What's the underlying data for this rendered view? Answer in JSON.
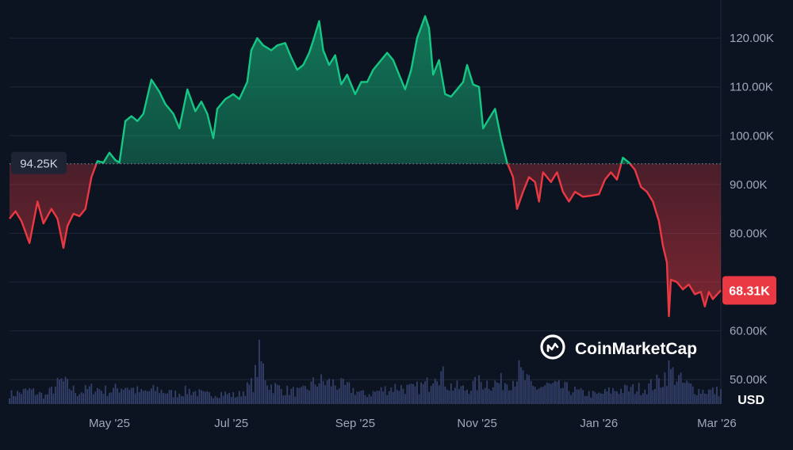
{
  "colors": {
    "background": "#0d1421",
    "grid": "#1e2636",
    "up": "#16c784",
    "down": "#ea3943",
    "axis_text": "#a1a7bb",
    "volume": "#3b4878",
    "reference_label_bg": "#1e2433",
    "reference_label_text": "#cfd6e4",
    "price_tag_text": "#ffffff",
    "watermark": "#ffffff"
  },
  "watermark": {
    "text": "CoinMarketCap",
    "icon": "coinmarketcap-logo-icon"
  },
  "chart_data": {
    "type": "line",
    "currency_label": "USD",
    "y_ticks": [
      {
        "value": 50000,
        "label": "50.00K"
      },
      {
        "value": 60000,
        "label": "60.00K"
      },
      {
        "value": 70000,
        "label": ""
      },
      {
        "value": 80000,
        "label": "80.00K"
      },
      {
        "value": 90000,
        "label": "90.00K"
      },
      {
        "value": 100000,
        "label": "100.00K"
      },
      {
        "value": 110000,
        "label": "110.00K"
      },
      {
        "value": 120000,
        "label": "120.00K"
      }
    ],
    "x_ticks": [
      {
        "date": "2025-05-01",
        "label": "May '25"
      },
      {
        "date": "2025-07-01",
        "label": "Jul '25"
      },
      {
        "date": "2025-09-01",
        "label": "Sep '25"
      },
      {
        "date": "2025-11-01",
        "label": "Nov '25"
      },
      {
        "date": "2026-01-01",
        "label": "Jan '26"
      },
      {
        "date": "2026-03-01",
        "label": "Mar '26"
      }
    ],
    "ylim": [
      45000,
      127000
    ],
    "xlim": [
      "2025-03-12",
      "2026-03-03"
    ],
    "reference": {
      "value": 94250,
      "label": "94.25K"
    },
    "current": {
      "value": 68310,
      "label": "68.31K"
    },
    "series": [
      {
        "points": [
          [
            "2025-03-12",
            83000
          ],
          [
            "2025-03-15",
            84500
          ],
          [
            "2025-03-18",
            82500
          ],
          [
            "2025-03-22",
            78000
          ],
          [
            "2025-03-26",
            86500
          ],
          [
            "2025-03-29",
            82000
          ],
          [
            "2025-04-02",
            85000
          ],
          [
            "2025-04-05",
            83000
          ],
          [
            "2025-04-08",
            77000
          ],
          [
            "2025-04-10",
            81500
          ],
          [
            "2025-04-13",
            84000
          ],
          [
            "2025-04-16",
            83500
          ],
          [
            "2025-04-19",
            85000
          ],
          [
            "2025-04-22",
            91500
          ],
          [
            "2025-04-25",
            94800
          ],
          [
            "2025-04-28",
            94500
          ],
          [
            "2025-05-01",
            96500
          ],
          [
            "2025-05-04",
            95000
          ],
          [
            "2025-05-06",
            94500
          ],
          [
            "2025-05-09",
            103000
          ],
          [
            "2025-05-12",
            104000
          ],
          [
            "2025-05-15",
            103000
          ],
          [
            "2025-05-18",
            104500
          ],
          [
            "2025-05-22",
            111500
          ],
          [
            "2025-05-26",
            109000
          ],
          [
            "2025-05-29",
            106500
          ],
          [
            "2025-06-02",
            104500
          ],
          [
            "2025-06-05",
            101500
          ],
          [
            "2025-06-09",
            109500
          ],
          [
            "2025-06-13",
            105000
          ],
          [
            "2025-06-16",
            107000
          ],
          [
            "2025-06-19",
            104500
          ],
          [
            "2025-06-22",
            99500
          ],
          [
            "2025-06-24",
            105500
          ],
          [
            "2025-06-28",
            107500
          ],
          [
            "2025-07-02",
            108500
          ],
          [
            "2025-07-05",
            107500
          ],
          [
            "2025-07-09",
            111000
          ],
          [
            "2025-07-11",
            117500
          ],
          [
            "2025-07-14",
            120000
          ],
          [
            "2025-07-17",
            118500
          ],
          [
            "2025-07-21",
            117500
          ],
          [
            "2025-07-24",
            118500
          ],
          [
            "2025-07-28",
            119000
          ],
          [
            "2025-07-31",
            116000
          ],
          [
            "2025-08-03",
            113500
          ],
          [
            "2025-08-06",
            114500
          ],
          [
            "2025-08-09",
            117000
          ],
          [
            "2025-08-11",
            119500
          ],
          [
            "2025-08-14",
            123500
          ],
          [
            "2025-08-16",
            117500
          ],
          [
            "2025-08-19",
            114500
          ],
          [
            "2025-08-22",
            116500
          ],
          [
            "2025-08-25",
            110500
          ],
          [
            "2025-08-28",
            112500
          ],
          [
            "2025-09-01",
            108500
          ],
          [
            "2025-09-04",
            111000
          ],
          [
            "2025-09-07",
            111000
          ],
          [
            "2025-09-10",
            113500
          ],
          [
            "2025-09-14",
            115500
          ],
          [
            "2025-09-17",
            117000
          ],
          [
            "2025-09-20",
            115500
          ],
          [
            "2025-09-23",
            112500
          ],
          [
            "2025-09-26",
            109500
          ],
          [
            "2025-09-29",
            113500
          ],
          [
            "2025-10-02",
            120000
          ],
          [
            "2025-10-06",
            124500
          ],
          [
            "2025-10-08",
            122000
          ],
          [
            "2025-10-10",
            112500
          ],
          [
            "2025-10-13",
            115500
          ],
          [
            "2025-10-16",
            108500
          ],
          [
            "2025-10-19",
            108000
          ],
          [
            "2025-10-22",
            109500
          ],
          [
            "2025-10-25",
            111000
          ],
          [
            "2025-10-27",
            114500
          ],
          [
            "2025-10-30",
            110500
          ],
          [
            "2025-11-02",
            110000
          ],
          [
            "2025-11-04",
            101500
          ],
          [
            "2025-11-07",
            103500
          ],
          [
            "2025-11-10",
            105500
          ],
          [
            "2025-11-13",
            99500
          ],
          [
            "2025-11-16",
            94500
          ],
          [
            "2025-11-19",
            91500
          ],
          [
            "2025-11-21",
            85000
          ],
          [
            "2025-11-24",
            88500
          ],
          [
            "2025-11-27",
            91500
          ],
          [
            "2025-11-30",
            90500
          ],
          [
            "2025-12-02",
            86500
          ],
          [
            "2025-12-04",
            92500
          ],
          [
            "2025-12-08",
            90500
          ],
          [
            "2025-12-11",
            92500
          ],
          [
            "2025-12-14",
            88500
          ],
          [
            "2025-12-17",
            86500
          ],
          [
            "2025-12-20",
            88500
          ],
          [
            "2025-12-24",
            87500
          ],
          [
            "2025-12-28",
            87700
          ],
          [
            "2026-01-01",
            88000
          ],
          [
            "2026-01-04",
            91000
          ],
          [
            "2026-01-07",
            92500
          ],
          [
            "2026-01-10",
            91000
          ],
          [
            "2026-01-13",
            95500
          ],
          [
            "2026-01-16",
            94500
          ],
          [
            "2026-01-19",
            93000
          ],
          [
            "2026-01-22",
            89500
          ],
          [
            "2026-01-25",
            88500
          ],
          [
            "2026-01-28",
            86500
          ],
          [
            "2026-01-31",
            82500
          ],
          [
            "2026-02-02",
            77500
          ],
          [
            "2026-02-04",
            74000
          ],
          [
            "2026-02-05",
            63000
          ],
          [
            "2026-02-06",
            70500
          ],
          [
            "2026-02-09",
            70000
          ],
          [
            "2026-02-12",
            68500
          ],
          [
            "2026-02-15",
            69500
          ],
          [
            "2026-02-18",
            67500
          ],
          [
            "2026-02-21",
            68000
          ],
          [
            "2026-02-23",
            65000
          ],
          [
            "2026-02-25",
            68000
          ],
          [
            "2026-02-27",
            66500
          ],
          [
            "2026-03-03",
            68310
          ]
        ]
      }
    ],
    "volume": [
      [
        "2025-03-14",
        0.22
      ],
      [
        "2025-03-22",
        0.3
      ],
      [
        "2025-03-30",
        0.18
      ],
      [
        "2025-04-07",
        0.5
      ],
      [
        "2025-04-15",
        0.25
      ],
      [
        "2025-04-23",
        0.35
      ],
      [
        "2025-05-01",
        0.28
      ],
      [
        "2025-05-09",
        0.4
      ],
      [
        "2025-05-17",
        0.25
      ],
      [
        "2025-05-25",
        0.32
      ],
      [
        "2025-06-02",
        0.22
      ],
      [
        "2025-06-10",
        0.3
      ],
      [
        "2025-06-18",
        0.2
      ],
      [
        "2025-06-26",
        0.24
      ],
      [
        "2025-07-04",
        0.18
      ],
      [
        "2025-07-12",
        0.45
      ],
      [
        "2025-07-15",
        1.0
      ],
      [
        "2025-07-20",
        0.42
      ],
      [
        "2025-07-28",
        0.3
      ],
      [
        "2025-08-05",
        0.26
      ],
      [
        "2025-08-13",
        0.5
      ],
      [
        "2025-08-21",
        0.45
      ],
      [
        "2025-08-29",
        0.35
      ],
      [
        "2025-09-06",
        0.2
      ],
      [
        "2025-09-14",
        0.3
      ],
      [
        "2025-09-22",
        0.38
      ],
      [
        "2025-09-30",
        0.32
      ],
      [
        "2025-10-08",
        0.45
      ],
      [
        "2025-10-11",
        0.85
      ],
      [
        "2025-10-18",
        0.4
      ],
      [
        "2025-10-26",
        0.32
      ],
      [
        "2025-11-03",
        0.48
      ],
      [
        "2025-11-11",
        0.45
      ],
      [
        "2025-11-19",
        0.55
      ],
      [
        "2025-11-22",
        0.7
      ],
      [
        "2025-11-29",
        0.35
      ],
      [
        "2025-12-07",
        0.4
      ],
      [
        "2025-12-15",
        0.35
      ],
      [
        "2025-12-23",
        0.25
      ],
      [
        "2025-12-31",
        0.2
      ],
      [
        "2026-01-08",
        0.3
      ],
      [
        "2026-01-16",
        0.32
      ],
      [
        "2026-01-24",
        0.35
      ],
      [
        "2026-02-01",
        0.5
      ],
      [
        "2026-02-05",
        0.75
      ],
      [
        "2026-02-12",
        0.45
      ],
      [
        "2026-02-20",
        0.3
      ],
      [
        "2026-02-28",
        0.28
      ]
    ]
  }
}
